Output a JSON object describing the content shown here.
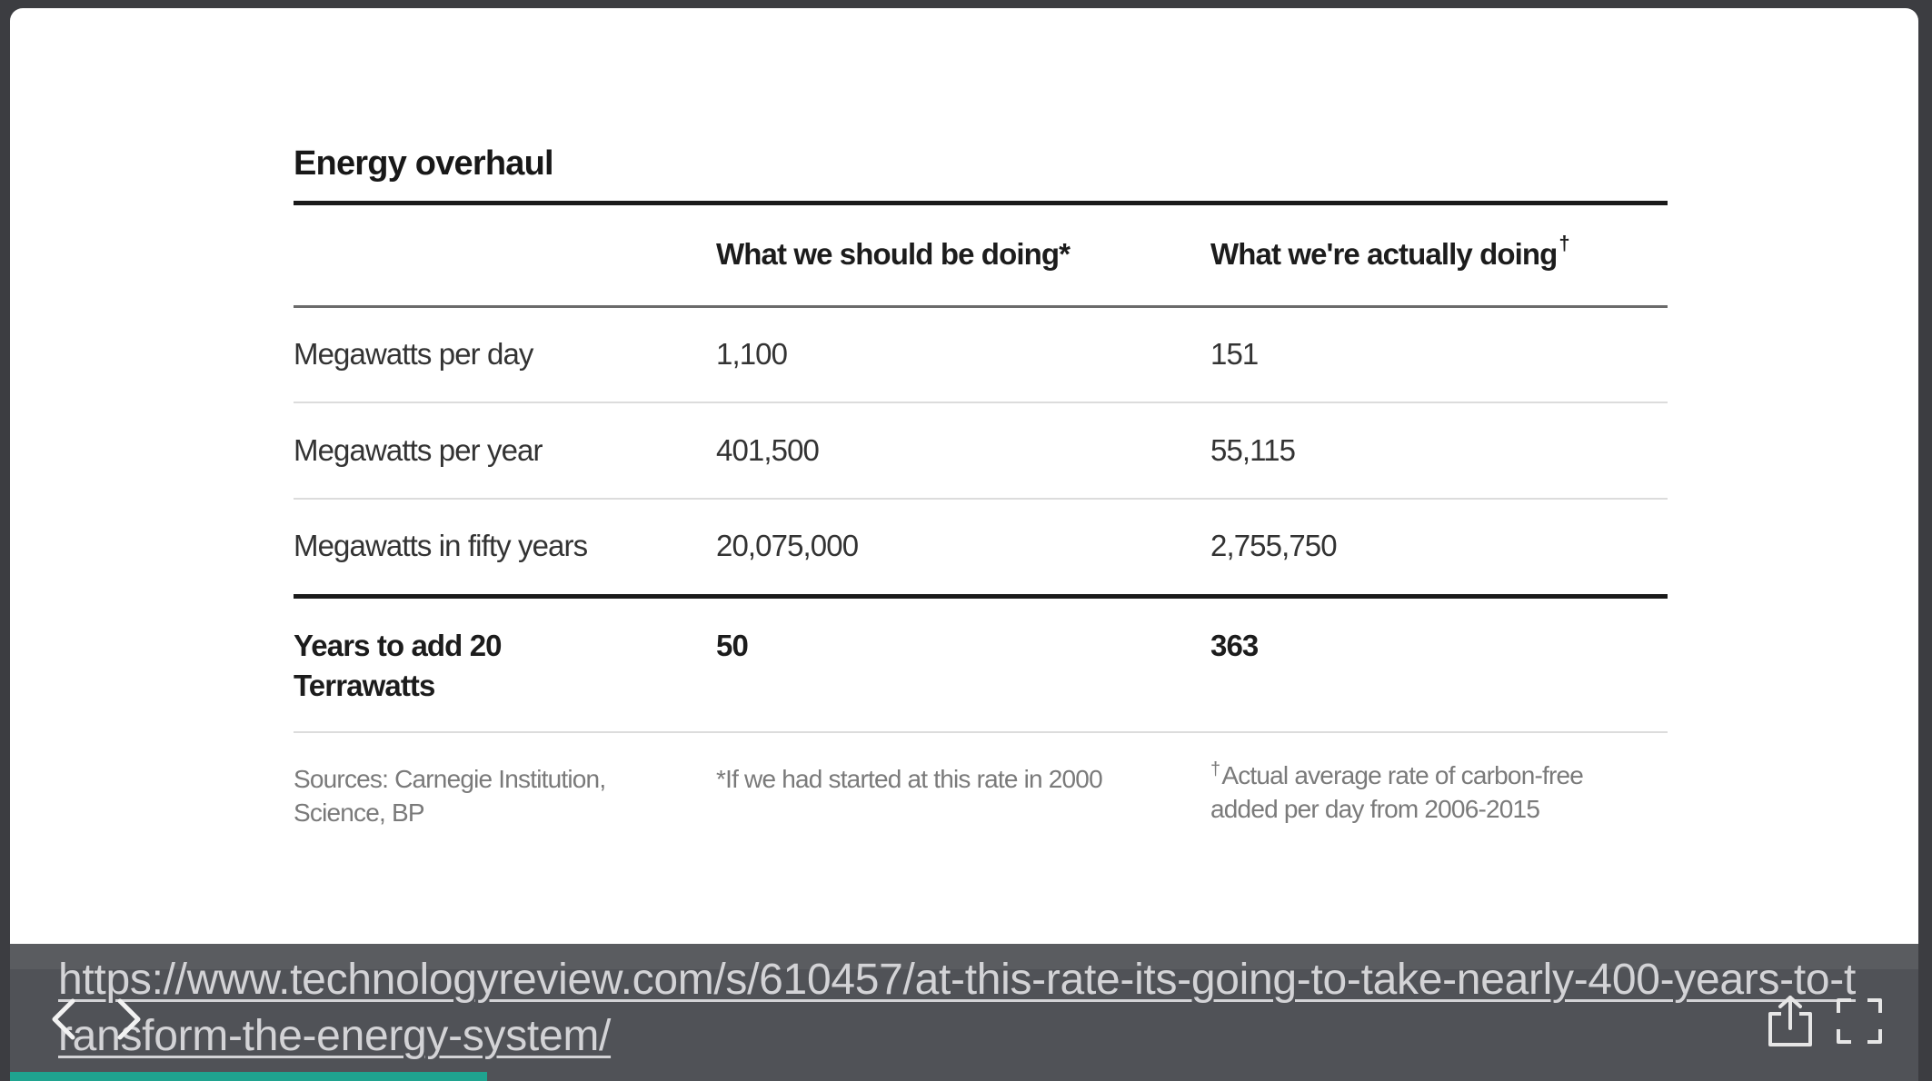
{
  "table": {
    "title": "Energy overhaul",
    "headers": {
      "label": "",
      "should": "What we should be doing*",
      "should_text": "What we should be doing*",
      "actual_text": "What we're actually doing",
      "actual_mark": "†"
    },
    "rows": [
      {
        "label": "Megawatts per day",
        "should": "1,100",
        "actual": "151"
      },
      {
        "label": "Megawatts per year",
        "should": "401,500",
        "actual": "55,115"
      },
      {
        "label": "Megawatts in fifty years",
        "should": "20,075,000",
        "actual": "2,755,750"
      }
    ],
    "total": {
      "label": "Years to add 20 Terrawatts",
      "should": "50",
      "actual": "363"
    },
    "notes": {
      "sources": "Sources: Carnegie Institution, Science, BP",
      "should_note": "*If we had started at this rate in 2000",
      "actual_mark": "†",
      "actual_note": "Actual average rate of carbon-free added per day from 2006-2015"
    }
  },
  "caption": {
    "url": "https://www.technologyreview.com/s/610457/at-this-rate-its-going-to-take-nearly-400-years-to-transform-the-energy-system/"
  },
  "controls": {
    "prev_icon": "chevron-left-icon",
    "next_icon": "chevron-right-icon",
    "share_icon": "share-icon",
    "fullscreen_icon": "fullscreen-icon"
  },
  "progress": {
    "fraction": 0.25,
    "color": "#1fa38f"
  }
}
